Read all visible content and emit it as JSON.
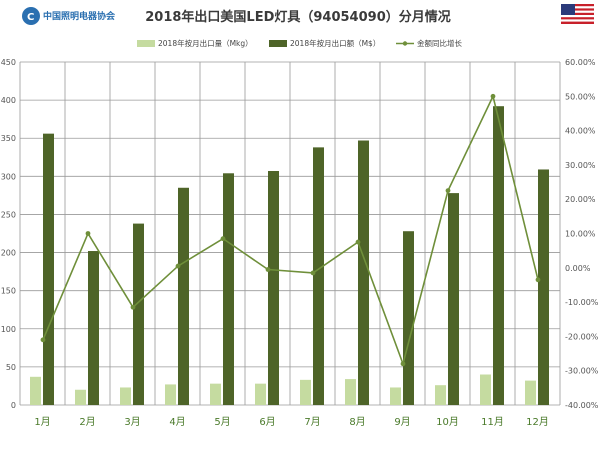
{
  "header": {
    "title": "2018年出口美国LED灯具（94054090）分月情况",
    "logo_text": "中国照明电器协会",
    "flag": "us-flag-icon"
  },
  "colors": {
    "quantity_bar": "#c5dba0",
    "value_bar": "#4e6428",
    "growth_line": "#6f8f3a",
    "grid": "#9a9a9a",
    "category_label": "#4a7a2a"
  },
  "chart_data": {
    "type": "bar",
    "title": "2018年出口美国LED灯具（94054090）分月情况",
    "categories": [
      "1月",
      "2月",
      "3月",
      "4月",
      "5月",
      "6月",
      "7月",
      "8月",
      "9月",
      "10月",
      "11月",
      "12月"
    ],
    "series": [
      {
        "name": "2018年按月出口量（Mkg）",
        "type": "bar",
        "axis": "left",
        "values": [
          37,
          20,
          23,
          27,
          28,
          28,
          33,
          34,
          23,
          26,
          40,
          32
        ]
      },
      {
        "name": "2018年按月出口额（M$）",
        "type": "bar",
        "axis": "left",
        "values": [
          356,
          202,
          238,
          285,
          304,
          307,
          338,
          347,
          228,
          278,
          392,
          309
        ]
      },
      {
        "name": "金额同比增长",
        "type": "line",
        "axis": "right",
        "values": [
          -21.0,
          10.0,
          -11.5,
          0.5,
          8.5,
          -0.5,
          -1.5,
          7.5,
          -28.0,
          22.5,
          50.0,
          -3.5
        ]
      }
    ],
    "y_left": {
      "min": 0,
      "max": 450,
      "step": 50,
      "ticks": [
        "0",
        "50",
        "100",
        "150",
        "200",
        "250",
        "300",
        "350",
        "400",
        "450"
      ]
    },
    "y_right": {
      "min": -40,
      "max": 60,
      "step": 10,
      "ticks": [
        "-40.00%",
        "-30.00%",
        "-20.00%",
        "-10.00%",
        "0.00%",
        "10.00%",
        "20.00%",
        "30.00%",
        "40.00%",
        "50.00%",
        "60.00%"
      ]
    },
    "grid": true,
    "legend_position": "top-center"
  }
}
